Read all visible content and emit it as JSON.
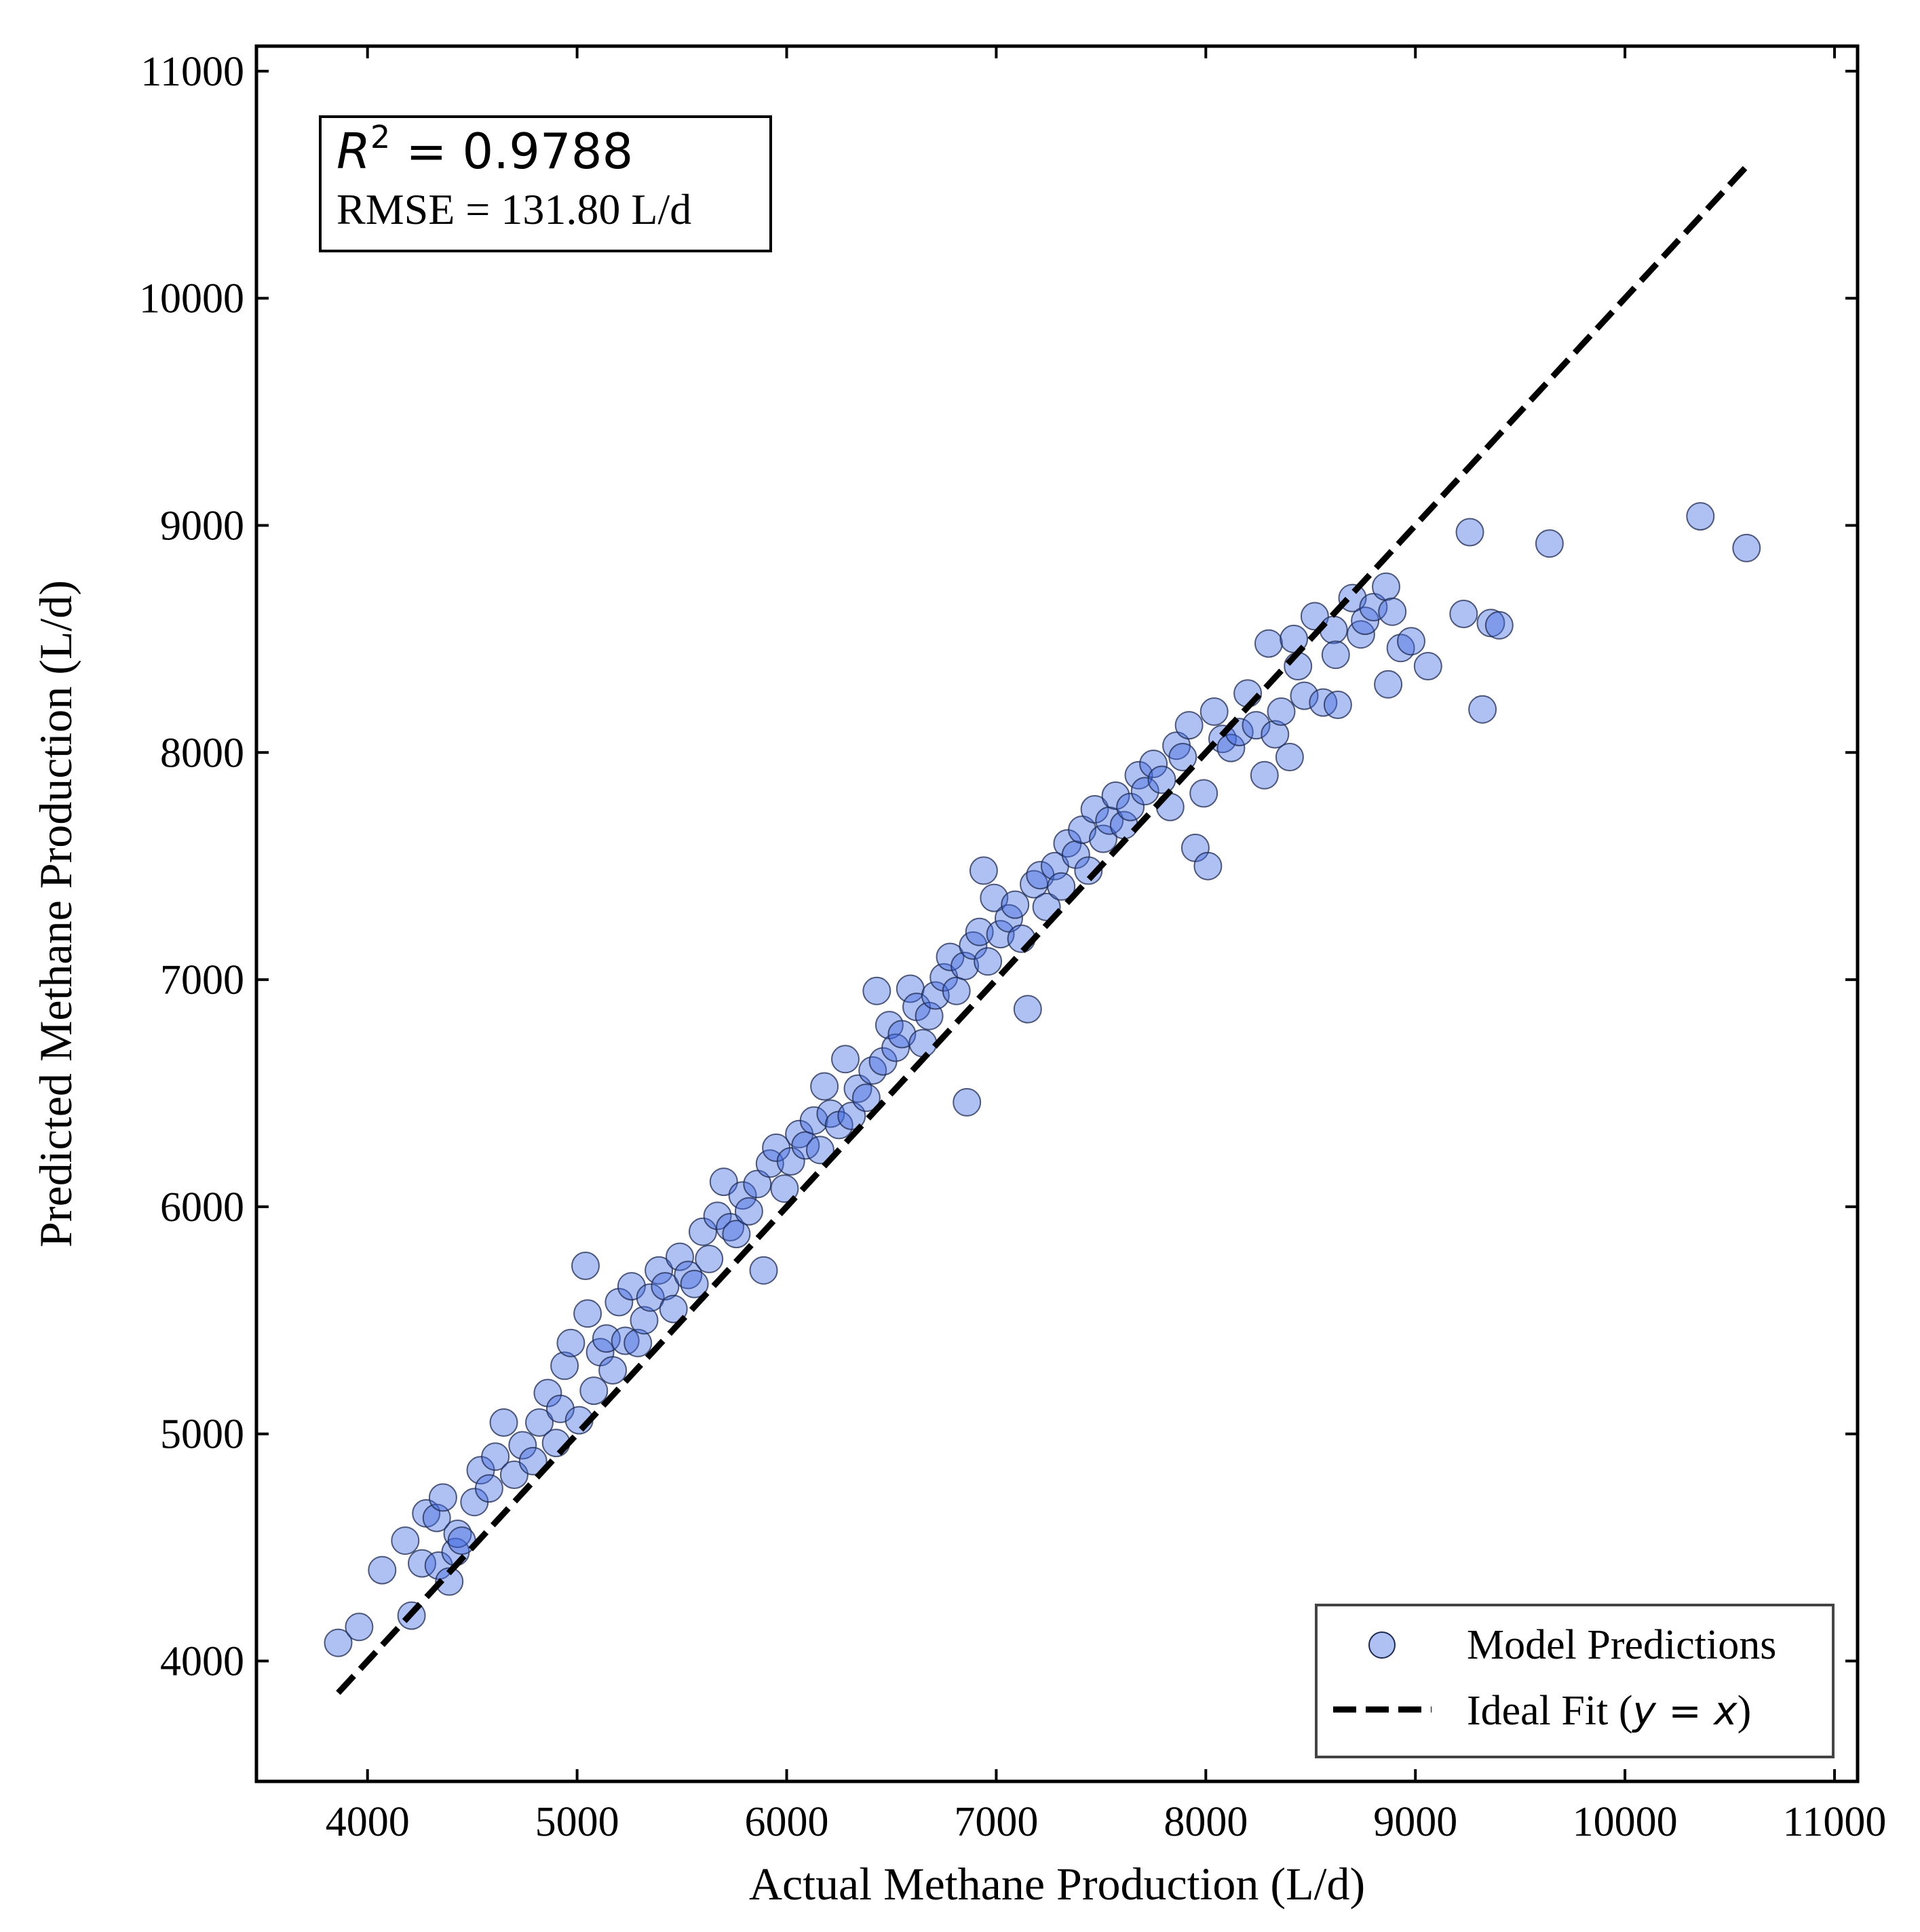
{
  "chart_data": {
    "type": "scatter",
    "title": "",
    "xlabel": "Actual Methane Production (L/d)",
    "ylabel": "Predicted Methane Production (L/d)",
    "xlim": [
      3470,
      11110
    ],
    "ylim": [
      3470,
      11110
    ],
    "xticks": [
      4000,
      5000,
      6000,
      7000,
      8000,
      9000,
      10000,
      11000
    ],
    "yticks": [
      4000,
      5000,
      6000,
      7000,
      8000,
      9000,
      10000,
      11000
    ],
    "grid": false,
    "legend_position": "bottom-right",
    "legend": {
      "points_label": "Model Predictions",
      "line_label_prefix": "Ideal Fit (",
      "line_label_math": "y = x",
      "line_label_suffix": ")"
    },
    "stats": {
      "r2_label": "R",
      "r2_exponent": "2",
      "r2_value": " = 0.9788",
      "rmse_text": "RMSE = 131.80 L/d"
    },
    "colors": {
      "point_fill": "#4169e1",
      "point_edge": "#1e2a50",
      "line": "#000000"
    },
    "ideal_line": {
      "x": [
        3860,
        10580
      ],
      "y": [
        3860,
        10580
      ]
    },
    "series": [
      {
        "name": "Model Predictions",
        "points": [
          [
            3860,
            4080
          ],
          [
            3960,
            4150
          ],
          [
            4070,
            4400
          ],
          [
            4180,
            4530
          ],
          [
            4210,
            4200
          ],
          [
            4280,
            4650
          ],
          [
            4260,
            4430
          ],
          [
            4330,
            4630
          ],
          [
            4340,
            4420
          ],
          [
            4360,
            4720
          ],
          [
            4390,
            4350
          ],
          [
            4420,
            4480
          ],
          [
            4430,
            4560
          ],
          [
            4450,
            4530
          ],
          [
            4510,
            4700
          ],
          [
            4540,
            4840
          ],
          [
            4580,
            4760
          ],
          [
            4610,
            4900
          ],
          [
            4650,
            5050
          ],
          [
            4700,
            4820
          ],
          [
            4740,
            4950
          ],
          [
            4790,
            4880
          ],
          [
            4820,
            5050
          ],
          [
            4860,
            5180
          ],
          [
            4900,
            4960
          ],
          [
            4920,
            5110
          ],
          [
            4940,
            5300
          ],
          [
            4970,
            5400
          ],
          [
            5010,
            5060
          ],
          [
            5040,
            5740
          ],
          [
            5050,
            5530
          ],
          [
            5080,
            5190
          ],
          [
            5110,
            5360
          ],
          [
            5140,
            5420
          ],
          [
            5170,
            5280
          ],
          [
            5200,
            5580
          ],
          [
            5230,
            5410
          ],
          [
            5260,
            5650
          ],
          [
            5290,
            5400
          ],
          [
            5320,
            5500
          ],
          [
            5350,
            5600
          ],
          [
            5390,
            5720
          ],
          [
            5420,
            5650
          ],
          [
            5460,
            5550
          ],
          [
            5490,
            5780
          ],
          [
            5530,
            5700
          ],
          [
            5560,
            5660
          ],
          [
            5600,
            5890
          ],
          [
            5630,
            5770
          ],
          [
            5670,
            5960
          ],
          [
            5700,
            6110
          ],
          [
            5730,
            5910
          ],
          [
            5760,
            5880
          ],
          [
            5790,
            6050
          ],
          [
            5820,
            5980
          ],
          [
            5860,
            6100
          ],
          [
            5890,
            5720
          ],
          [
            5920,
            6190
          ],
          [
            5950,
            6260
          ],
          [
            5990,
            6080
          ],
          [
            6020,
            6200
          ],
          [
            6060,
            6320
          ],
          [
            6090,
            6270
          ],
          [
            6130,
            6380
          ],
          [
            6160,
            6250
          ],
          [
            6180,
            6530
          ],
          [
            6210,
            6410
          ],
          [
            6250,
            6360
          ],
          [
            6280,
            6650
          ],
          [
            6310,
            6400
          ],
          [
            6340,
            6520
          ],
          [
            6380,
            6480
          ],
          [
            6410,
            6600
          ],
          [
            6430,
            6950
          ],
          [
            6460,
            6640
          ],
          [
            6490,
            6800
          ],
          [
            6520,
            6700
          ],
          [
            6550,
            6760
          ],
          [
            6590,
            6960
          ],
          [
            6620,
            6880
          ],
          [
            6650,
            6720
          ],
          [
            6680,
            6840
          ],
          [
            6710,
            6930
          ],
          [
            6750,
            7010
          ],
          [
            6780,
            7100
          ],
          [
            6810,
            6950
          ],
          [
            6850,
            7060
          ],
          [
            6860,
            6460
          ],
          [
            6890,
            7150
          ],
          [
            6920,
            7210
          ],
          [
            6940,
            7480
          ],
          [
            6960,
            7080
          ],
          [
            6990,
            7360
          ],
          [
            7020,
            7200
          ],
          [
            7060,
            7270
          ],
          [
            7090,
            7330
          ],
          [
            7120,
            7180
          ],
          [
            7150,
            6870
          ],
          [
            7180,
            7420
          ],
          [
            7210,
            7460
          ],
          [
            7240,
            7320
          ],
          [
            7280,
            7500
          ],
          [
            7310,
            7410
          ],
          [
            7340,
            7600
          ],
          [
            7380,
            7550
          ],
          [
            7410,
            7660
          ],
          [
            7440,
            7480
          ],
          [
            7470,
            7750
          ],
          [
            7510,
            7620
          ],
          [
            7540,
            7700
          ],
          [
            7570,
            7810
          ],
          [
            7610,
            7680
          ],
          [
            7640,
            7760
          ],
          [
            7680,
            7900
          ],
          [
            7710,
            7830
          ],
          [
            7750,
            7950
          ],
          [
            7790,
            7880
          ],
          [
            7830,
            7760
          ],
          [
            7860,
            8030
          ],
          [
            7890,
            7980
          ],
          [
            7920,
            8120
          ],
          [
            7950,
            7580
          ],
          [
            7990,
            7820
          ],
          [
            8010,
            7500
          ],
          [
            8040,
            8180
          ],
          [
            8080,
            8060
          ],
          [
            8120,
            8020
          ],
          [
            8160,
            8090
          ],
          [
            8200,
            8260
          ],
          [
            8240,
            8120
          ],
          [
            8280,
            7900
          ],
          [
            8300,
            8480
          ],
          [
            8330,
            8080
          ],
          [
            8360,
            8180
          ],
          [
            8400,
            7980
          ],
          [
            8420,
            8500
          ],
          [
            8440,
            8380
          ],
          [
            8470,
            8250
          ],
          [
            8520,
            8600
          ],
          [
            8560,
            8220
          ],
          [
            8610,
            8540
          ],
          [
            8620,
            8430
          ],
          [
            8630,
            8210
          ],
          [
            8700,
            8680
          ],
          [
            8740,
            8520
          ],
          [
            8760,
            8580
          ],
          [
            8800,
            8640
          ],
          [
            8860,
            8730
          ],
          [
            8870,
            8300
          ],
          [
            8890,
            8620
          ],
          [
            8930,
            8460
          ],
          [
            8980,
            8490
          ],
          [
            9060,
            8380
          ],
          [
            9230,
            8610
          ],
          [
            9260,
            8970
          ],
          [
            9320,
            8190
          ],
          [
            9360,
            8570
          ],
          [
            9400,
            8560
          ],
          [
            9640,
            8920
          ],
          [
            10360,
            9040
          ],
          [
            10580,
            8900
          ]
        ]
      }
    ]
  }
}
